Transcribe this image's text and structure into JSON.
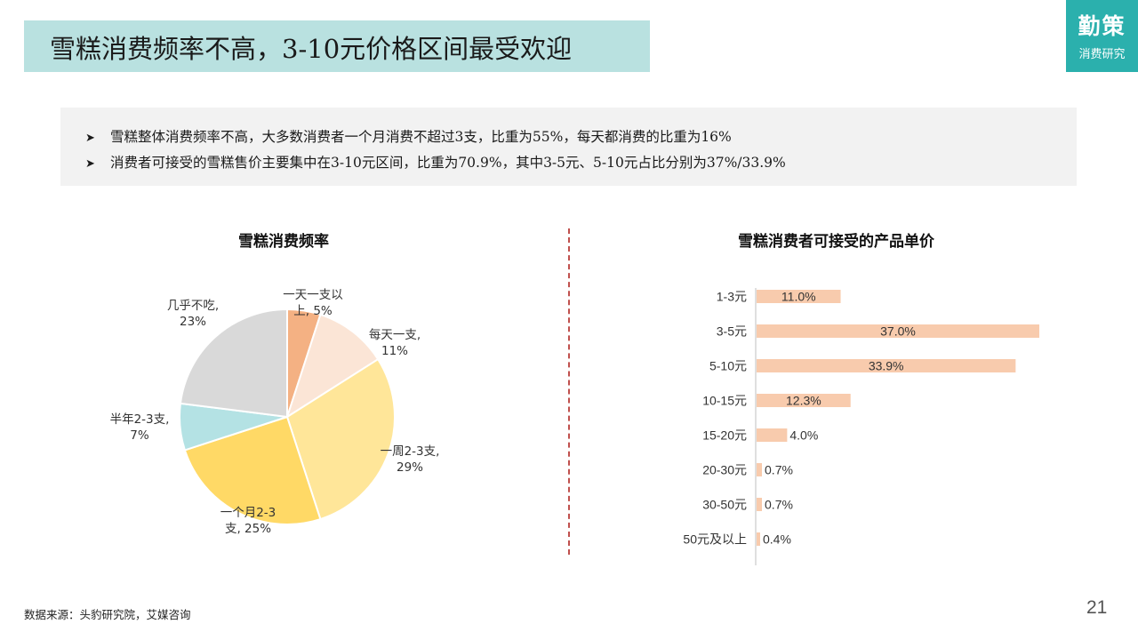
{
  "header": {
    "title": "雪糕消费频率不高，3-10元价格区间最受欢迎",
    "logo_main": "勤策",
    "logo_sub": "消费研究"
  },
  "summary": {
    "bullets": [
      "雪糕整体消费频率不高，大多数消费者一个月消费不超过3支，比重为55%，每天都消费的比重为16%",
      "消费者可接受的雪糕售价主要集中在3-10元区间，比重为70.9%，其中3-5元、5-10元占比分别为37%/33.9%"
    ],
    "bullet_icon": "arrow-bullet-icon"
  },
  "chart_data": [
    {
      "type": "pie",
      "title": "雪糕消费频率",
      "slices": [
        {
          "label": "一天一支以上",
          "value": 5,
          "label_lines": [
            "一天一支以",
            "上, 5%"
          ],
          "color": "#f4b183"
        },
        {
          "label": "每天一支",
          "value": 11,
          "label_lines": [
            "每天一支,",
            "11%"
          ],
          "color": "#fbe5d6"
        },
        {
          "label": "一周2-3支",
          "value": 29,
          "label_lines": [
            "一周2-3支,",
            "29%"
          ],
          "color": "#ffe699"
        },
        {
          "label": "一个月2-3支",
          "value": 25,
          "label_lines": [
            "一个月2-3",
            "支, 25%"
          ],
          "color": "#ffd966"
        },
        {
          "label": "半年2-3支",
          "value": 7,
          "label_lines": [
            "半年2-3支,",
            "7%"
          ],
          "color": "#b4e2e4"
        },
        {
          "label": "几乎不吃",
          "value": 23,
          "label_lines": [
            "几乎不吃,",
            "23%"
          ],
          "color": "#d9d9d9"
        }
      ]
    },
    {
      "type": "bar",
      "orientation": "horizontal",
      "title": "雪糕消费者可接受的产品单价",
      "categories": [
        "1-3元",
        "3-5元",
        "5-10元",
        "10-15元",
        "15-20元",
        "20-30元",
        "30-50元",
        "50元及以上"
      ],
      "values": [
        11.0,
        37.0,
        33.9,
        12.3,
        4.0,
        0.7,
        0.7,
        0.4
      ],
      "value_labels": [
        "11.0%",
        "37.0%",
        "33.9%",
        "12.3%",
        "4.0%",
        "0.7%",
        "0.7%",
        "0.4%"
      ],
      "unit": "%",
      "bar_color": "#f8cbad",
      "grid": false
    }
  ],
  "footer": {
    "source": "数据来源：头豹研究院，艾媒咨询",
    "page": "21"
  },
  "colors": {
    "title_bg": "#b9e1e0",
    "logo_bg": "#2bb0ad",
    "summary_bg": "#f2f2f2",
    "divider": "#c0504d"
  }
}
